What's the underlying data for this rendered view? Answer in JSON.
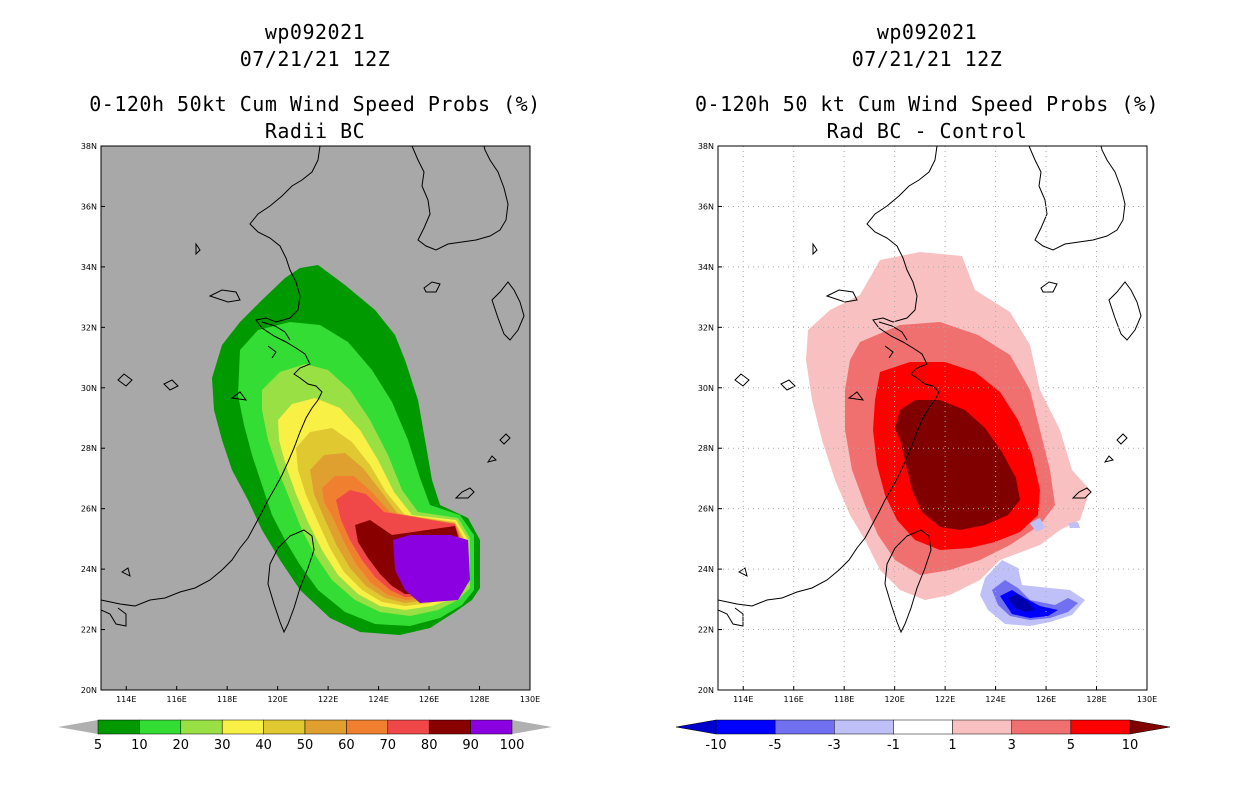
{
  "left_panel": {
    "title_line1": "wp092021",
    "title_line2": "07/21/21 12Z",
    "title_line3": "0-120h 50kt Cum Wind Speed Probs (%)",
    "title_line4": "Radii BC",
    "background_color": "#a8a8a8",
    "colorbar": {
      "colors": [
        "#009900",
        "#33dd33",
        "#99e044",
        "#f8f044",
        "#e0c830",
        "#e0a030",
        "#f08030",
        "#f04848",
        "#880000",
        "#8a00e0"
      ],
      "labels": [
        "5",
        "10",
        "20",
        "30",
        "40",
        "50",
        "60",
        "70",
        "80",
        "90",
        "100"
      ]
    }
  },
  "right_panel": {
    "title_line1": "wp092021",
    "title_line2": "07/21/21 12Z",
    "title_line3": "0-120h 50 kt Cum Wind Speed Probs (%)",
    "title_line4": "Rad BC - Control",
    "background_color": "#ffffff",
    "colorbar": {
      "colors": [
        "#0000cc",
        "#0000ff",
        "#7070f0",
        "#c0c0f8",
        "#ffffff",
        "#f8c0c0",
        "#f07070",
        "#ff0000",
        "#800000"
      ],
      "labels": [
        "-10",
        "-5",
        "-3",
        "-1",
        "1",
        "3",
        "5",
        "10"
      ]
    }
  },
  "axes": {
    "lat_labels": [
      "38N",
      "36N",
      "34N",
      "32N",
      "30N",
      "28N",
      "26N",
      "24N",
      "22N",
      "20N"
    ],
    "lon_labels": [
      "114E",
      "116E",
      "118E",
      "120E",
      "122E",
      "124E",
      "126E",
      "128E",
      "130E"
    ],
    "lat_range": [
      20,
      38
    ],
    "lon_range": [
      113,
      130
    ]
  },
  "map_features": [
    "china-coastline",
    "korea-coastline",
    "taiwan",
    "ryukyu-islands"
  ]
}
